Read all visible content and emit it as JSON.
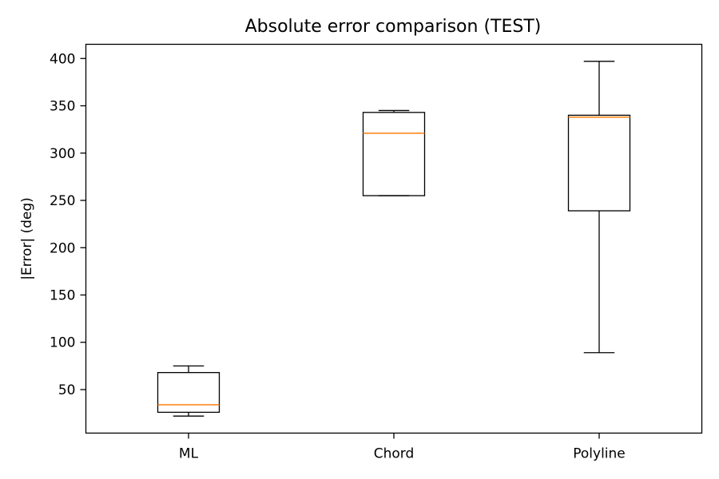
{
  "chart_data": {
    "type": "box",
    "title": "Absolute error comparison (TEST)",
    "xlabel": "",
    "ylabel": "|Error| (deg)",
    "ylim": [
      4,
      415
    ],
    "yticks": [
      50,
      100,
      150,
      200,
      250,
      300,
      350,
      400
    ],
    "grid": false,
    "categories": [
      "ML",
      "Chord",
      "Polyline"
    ],
    "boxes": [
      {
        "label": "ML",
        "whisker_low": 22,
        "q1": 26,
        "median": 34,
        "q3": 68,
        "whisker_high": 75
      },
      {
        "label": "Chord",
        "whisker_low": 255,
        "q1": 255,
        "median": 321,
        "q3": 343,
        "whisker_high": 345
      },
      {
        "label": "Polyline",
        "whisker_low": 89,
        "q1": 239,
        "median": 338,
        "q3": 340,
        "whisker_high": 397
      }
    ],
    "colors": {
      "box": "#000000",
      "median": "#ff7f0e"
    }
  }
}
